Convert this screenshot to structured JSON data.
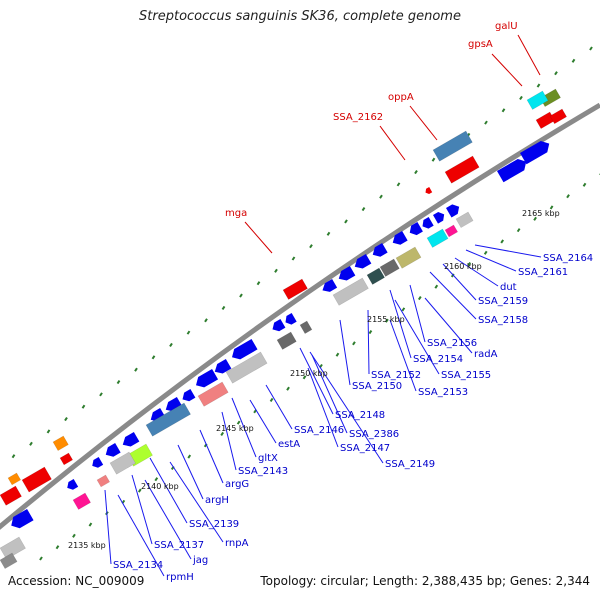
{
  "title": "Streptococcus sanguinis SK36, complete genome",
  "footer": {
    "accession": "Accession: NC_009009",
    "topology": "Topology: circular; Length: 2,388,435 bp; Genes: 2,344"
  },
  "colors": {
    "backbone": "#8c8c8c",
    "cds_forward": "#0000ee",
    "cds_reverse": "#0000ee",
    "tick": "#2e7d2e",
    "red_label": "#d40000",
    "blue_label": "#0000cc",
    "leader_red": "#d40000",
    "leader_blue": "#1a1aee"
  },
  "scale_labels": [
    "2135 kbp",
    "2140 kbp",
    "2145 kbp",
    "2150 kbp",
    "2155 kbp",
    "2160 kbp",
    "2165 kbp"
  ],
  "outer_labels": [
    "mga",
    "SSA_2162",
    "oppA",
    "gpsA",
    "galU"
  ],
  "inner_labels": [
    "SSA_2164",
    "SSA_2161",
    "dut",
    "SSA_2159",
    "SSA_2158",
    "SSA_2156",
    "radA",
    "SSA_2154",
    "SSA_2155",
    "SSA_2152",
    "SSA_2153",
    "SSA_2150",
    "SSA_2148",
    "SSA_2146",
    "SSA_2386",
    "SSA_2147",
    "SSA_2149",
    "estA",
    "SSA_2143",
    "gltX",
    "argG",
    "argH",
    "SSA_2139",
    "rnpA",
    "SSA_2137",
    "jag",
    "SSA_2134",
    "rpmH"
  ]
}
